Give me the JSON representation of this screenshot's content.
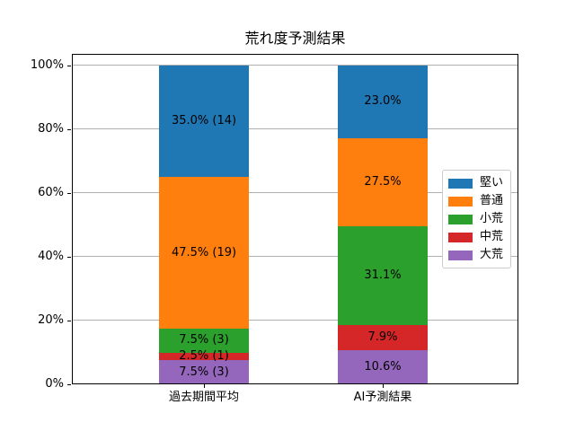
{
  "chart_data": {
    "type": "bar",
    "stacked": true,
    "orientation": "vertical",
    "title": "荒れ度予測結果",
    "categories": [
      "過去期間平均",
      "AI予測結果"
    ],
    "series": [
      {
        "name": "堅い",
        "color": "#1f77b4",
        "values": [
          35.0,
          23.0
        ],
        "labels": [
          "35.0% (14)",
          "23.0%"
        ]
      },
      {
        "name": "普通",
        "color": "#ff7f0e",
        "values": [
          47.5,
          27.5
        ],
        "labels": [
          "47.5% (19)",
          "27.5%"
        ]
      },
      {
        "name": "小荒",
        "color": "#2ca02c",
        "values": [
          7.5,
          31.1
        ],
        "labels": [
          "7.5% (3)",
          "31.1%"
        ]
      },
      {
        "name": "中荒",
        "color": "#d62728",
        "values": [
          2.5,
          7.9
        ],
        "labels": [
          "2.5% (1)",
          "7.9%"
        ]
      },
      {
        "name": "大荒",
        "color": "#9467bd",
        "values": [
          7.5,
          10.6
        ],
        "labels": [
          "7.5% (3)",
          "10.6%"
        ]
      }
    ],
    "stack_order_bottom_to_top": [
      "大荒",
      "中荒",
      "小荒",
      "普通",
      "堅い"
    ],
    "y_ticks": [
      "0%",
      "20%",
      "40%",
      "60%",
      "80%",
      "100%"
    ],
    "ylim": [
      0,
      100
    ],
    "grid": true,
    "legend": {
      "entries": [
        "堅い",
        "普通",
        "小荒",
        "中荒",
        "大荒"
      ],
      "position": "center-right"
    },
    "colors": {
      "grid": "#b0b0b0",
      "axis": "#000000",
      "text": "#000000",
      "background": "#ffffff"
    }
  }
}
